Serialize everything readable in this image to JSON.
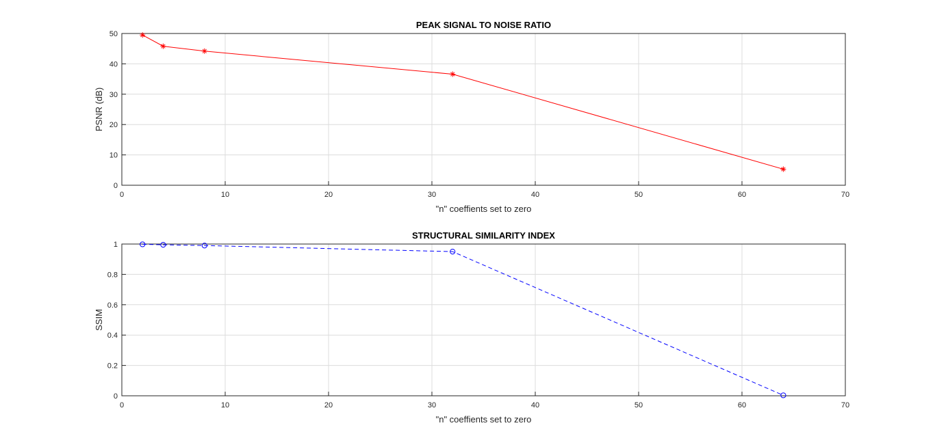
{
  "chart_data": [
    {
      "type": "line",
      "title": "PEAK SIGNAL TO NOISE RATIO",
      "xlabel": "\"n\" coeffients set to zero",
      "ylabel": "PSNR (dB)",
      "xlim": [
        0,
        70
      ],
      "ylim": [
        0,
        50
      ],
      "xticks": [
        0,
        10,
        20,
        30,
        40,
        50,
        60,
        70
      ],
      "yticks": [
        0,
        10,
        20,
        30,
        40,
        50
      ],
      "grid": true,
      "series": [
        {
          "x": [
            2,
            4,
            8,
            32,
            64
          ],
          "values": [
            49.5,
            45.8,
            44.2,
            36.6,
            5.3
          ],
          "color": "#ff0000",
          "line_style": "solid",
          "marker": "asterisk"
        }
      ]
    },
    {
      "type": "line",
      "title": "STRUCTURAL SIMILARITY INDEX",
      "xlabel": "\"n\" coeffients set to zero",
      "ylabel": "SSIM",
      "xlim": [
        0,
        70
      ],
      "ylim": [
        0,
        1
      ],
      "xticks": [
        0,
        10,
        20,
        30,
        40,
        50,
        60,
        70
      ],
      "yticks": [
        0,
        0.2,
        0.4,
        0.6,
        0.8,
        1
      ],
      "grid": true,
      "series": [
        {
          "x": [
            2,
            4,
            8,
            32,
            64
          ],
          "values": [
            0.998,
            0.995,
            0.99,
            0.95,
            0.003
          ],
          "color": "#0000ff",
          "line_style": "dashed",
          "marker": "circle"
        }
      ]
    }
  ]
}
